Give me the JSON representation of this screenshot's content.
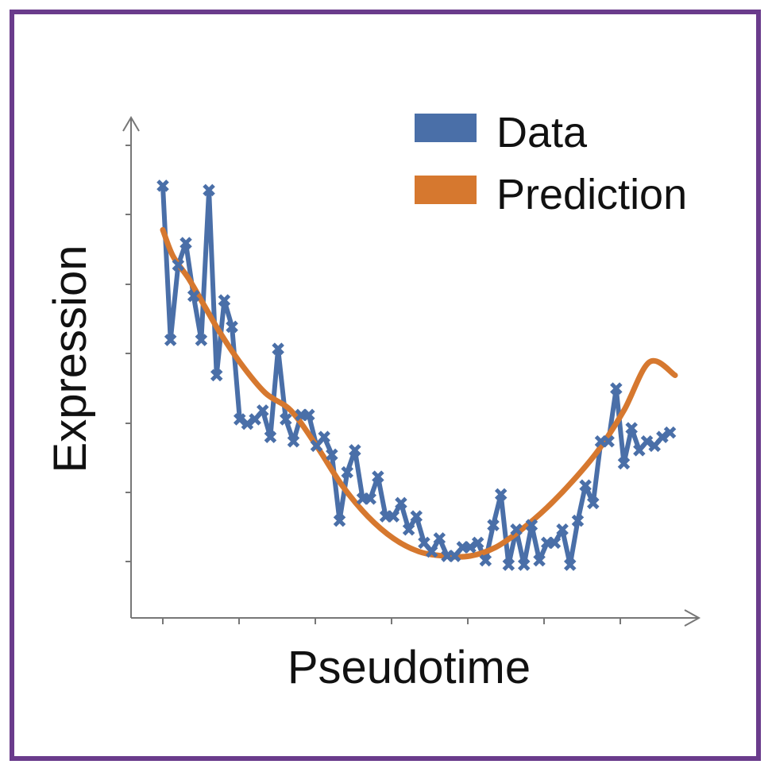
{
  "colors": {
    "frame": "#6a3c8c",
    "data": "#4a6fa8",
    "prediction": "#d6782f",
    "axis": "#777777"
  },
  "chart_data": {
    "type": "line",
    "xlabel": "Pseudotime",
    "ylabel": "Expression",
    "legend_placement": "top-right",
    "grid": false,
    "xlim": [
      0,
      1
    ],
    "ylim": [
      0,
      1
    ],
    "series": [
      {
        "name": "Data",
        "marker": "x",
        "x": [
          0.0,
          0.015,
          0.03,
          0.045,
          0.06,
          0.075,
          0.09,
          0.105,
          0.12,
          0.135,
          0.15,
          0.165,
          0.18,
          0.195,
          0.21,
          0.225,
          0.24,
          0.255,
          0.27,
          0.285,
          0.3,
          0.315,
          0.33,
          0.345,
          0.36,
          0.375,
          0.39,
          0.405,
          0.42,
          0.435,
          0.45,
          0.465,
          0.48,
          0.495,
          0.51,
          0.525,
          0.54,
          0.555,
          0.57,
          0.585,
          0.6,
          0.615,
          0.63,
          0.645,
          0.66,
          0.675,
          0.69,
          0.705,
          0.72,
          0.735,
          0.75,
          0.765,
          0.78,
          0.795,
          0.81,
          0.825,
          0.84,
          0.855,
          0.87,
          0.885,
          0.9,
          0.915,
          0.93,
          0.945,
          0.96,
          0.975,
          0.99
        ],
        "values": [
          0.93,
          0.58,
          0.75,
          0.8,
          0.68,
          0.58,
          0.92,
          0.5,
          0.67,
          0.61,
          0.4,
          0.39,
          0.4,
          0.42,
          0.36,
          0.56,
          0.4,
          0.35,
          0.41,
          0.41,
          0.34,
          0.36,
          0.32,
          0.17,
          0.28,
          0.33,
          0.22,
          0.22,
          0.27,
          0.18,
          0.18,
          0.21,
          0.15,
          0.18,
          0.12,
          0.1,
          0.13,
          0.09,
          0.09,
          0.11,
          0.11,
          0.12,
          0.08,
          0.16,
          0.23,
          0.07,
          0.15,
          0.07,
          0.16,
          0.08,
          0.12,
          0.12,
          0.15,
          0.07,
          0.17,
          0.25,
          0.21,
          0.35,
          0.35,
          0.47,
          0.3,
          0.38,
          0.33,
          0.35,
          0.34,
          0.36,
          0.37
        ]
      },
      {
        "name": "Prediction",
        "x": [
          0.0,
          0.02,
          0.05,
          0.08,
          0.11,
          0.15,
          0.2,
          0.25,
          0.3,
          0.35,
          0.4,
          0.45,
          0.5,
          0.55,
          0.6,
          0.65,
          0.7,
          0.75,
          0.8,
          0.85,
          0.9,
          0.95,
          1.0
        ],
        "values": [
          0.83,
          0.77,
          0.72,
          0.66,
          0.6,
          0.53,
          0.46,
          0.42,
          0.34,
          0.25,
          0.18,
          0.13,
          0.1,
          0.09,
          0.09,
          0.11,
          0.15,
          0.2,
          0.26,
          0.33,
          0.42,
          0.53,
          0.5
        ]
      }
    ]
  }
}
